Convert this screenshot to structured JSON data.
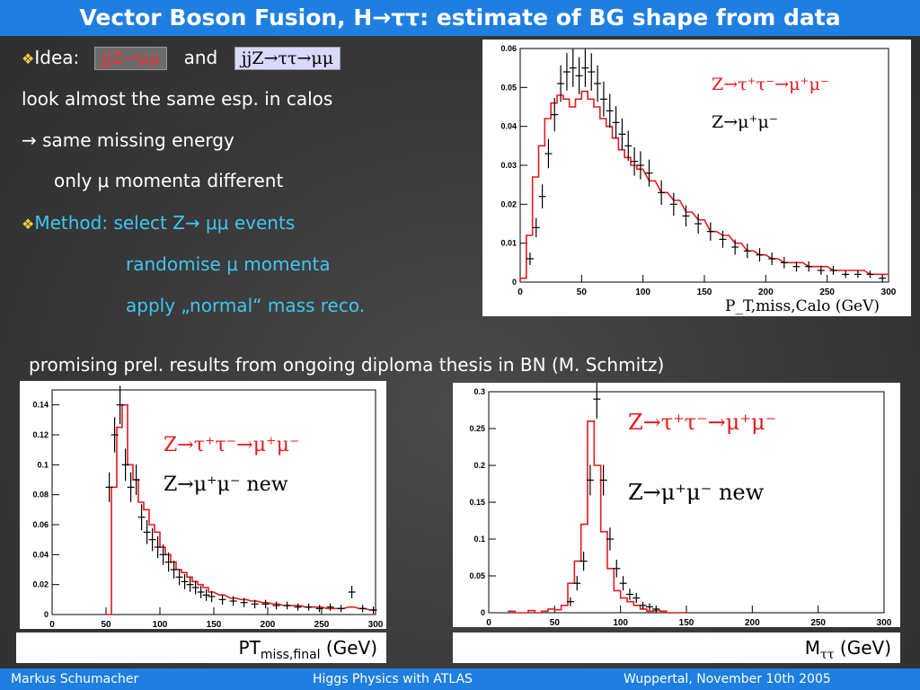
{
  "header": {
    "title": "Vector Boson Fusion, H→ττ: estimate of BG shape from data"
  },
  "bullets": {
    "idea_label": "Idea:",
    "tag1": "jjZ→μμ",
    "and": "and",
    "tag2": "jjZ→ττ→μμ",
    "line2": "look almost the same esp. in calos",
    "line3": "→ same missing energy",
    "line4": "only μ momenta different",
    "method": "Method: select Z→ μμ events",
    "method2": "randomise μ momenta",
    "method3": "apply „normal“ mass reco.",
    "promising": "promising prel. results from ongoing diploma thesis in BN (M. Schmitz)"
  },
  "captions": {
    "left": "PTmiss,final (GeV)",
    "left_main": "PT",
    "left_sub": "miss,final",
    "left_unit": " (GeV)",
    "right_main": "M",
    "right_sub": "ττ",
    "right_unit": " (GeV)"
  },
  "footer": {
    "author": "Markus  Schumacher",
    "talk": "Higgs Physics  with ATLAS",
    "place_date": "Wuppertal, November 10th 2005"
  },
  "colors": {
    "accent": "#1f7fe0",
    "cyan": "#3ec7f0",
    "red": "#e8191d"
  },
  "chart_data": [
    {
      "type": "line",
      "xlabel": "P_T,miss,Calo (GeV)",
      "xlim": [
        0,
        300
      ],
      "ylim": [
        0,
        0.06
      ],
      "xticks": [
        "0",
        "50",
        "100",
        "150",
        "200",
        "250",
        "300"
      ],
      "yticks": [
        "0",
        "0.01",
        "0.02",
        "0.03",
        "0.04",
        "0.05",
        "0.06"
      ],
      "legend": [
        "Z→τ⁺τ⁻→μ⁺μ⁻",
        "Z→μ⁺μ⁻"
      ],
      "series": [
        {
          "name": "Z→τ⁺τ⁻→μ⁺μ⁻",
          "style": "histogram",
          "x": [
            5,
            10,
            15,
            20,
            25,
            30,
            35,
            40,
            45,
            50,
            55,
            60,
            65,
            70,
            75,
            80,
            85,
            90,
            95,
            100,
            110,
            120,
            130,
            140,
            150,
            160,
            170,
            180,
            190,
            200,
            210,
            220,
            230,
            240,
            250,
            260,
            270,
            280,
            290,
            300
          ],
          "values": [
            0.001,
            0.012,
            0.027,
            0.035,
            0.042,
            0.046,
            0.048,
            0.047,
            0.045,
            0.047,
            0.049,
            0.047,
            0.045,
            0.042,
            0.04,
            0.037,
            0.034,
            0.032,
            0.03,
            0.029,
            0.026,
            0.023,
            0.021,
            0.018,
            0.016,
            0.013,
            0.012,
            0.01,
            0.008,
            0.007,
            0.006,
            0.005,
            0.005,
            0.004,
            0.004,
            0.003,
            0.003,
            0.003,
            0.002,
            0.002
          ]
        },
        {
          "name": "Z→μ⁺μ⁻",
          "style": "points",
          "x": [
            8,
            13,
            18,
            23,
            28,
            33,
            38,
            43,
            48,
            53,
            58,
            63,
            68,
            73,
            78,
            83,
            88,
            93,
            98,
            105,
            115,
            125,
            135,
            145,
            155,
            165,
            175,
            185,
            195,
            205,
            215,
            225,
            235,
            245,
            255,
            265,
            275,
            285,
            295
          ],
          "values": [
            0.006,
            0.014,
            0.022,
            0.033,
            0.043,
            0.051,
            0.054,
            0.055,
            0.053,
            0.055,
            0.054,
            0.051,
            0.047,
            0.044,
            0.041,
            0.038,
            0.035,
            0.031,
            0.03,
            0.028,
            0.023,
            0.02,
            0.017,
            0.015,
            0.013,
            0.011,
            0.009,
            0.008,
            0.007,
            0.006,
            0.005,
            0.004,
            0.004,
            0.003,
            0.003,
            0.002,
            0.002,
            0.002,
            0.001
          ]
        }
      ]
    },
    {
      "type": "line",
      "xlim": [
        0,
        300
      ],
      "ylim": [
        0,
        0.15
      ],
      "xticks": [
        "0",
        "50",
        "100",
        "150",
        "200",
        "250",
        "300"
      ],
      "yticks": [
        "0",
        "0.02",
        "0.04",
        "0.06",
        "0.08",
        "0.1",
        "0.12",
        "0.14"
      ],
      "legend": [
        "Z→τ⁺τ⁻→μ⁺μ⁻",
        "Z→μ⁺μ⁻ new"
      ],
      "series": [
        {
          "name": "Z→τ⁺τ⁻→μ⁺μ⁻",
          "style": "histogram",
          "x": [
            55,
            60,
            65,
            70,
            75,
            80,
            85,
            90,
            95,
            100,
            105,
            110,
            115,
            120,
            125,
            130,
            135,
            140,
            145,
            150,
            160,
            170,
            180,
            190,
            200,
            210,
            220,
            230,
            240,
            250,
            260,
            270,
            280,
            290,
            300
          ],
          "values": [
            0.0,
            0.085,
            0.125,
            0.14,
            0.1,
            0.09,
            0.075,
            0.07,
            0.06,
            0.055,
            0.045,
            0.04,
            0.035,
            0.03,
            0.028,
            0.025,
            0.022,
            0.02,
            0.018,
            0.015,
            0.013,
            0.011,
            0.01,
            0.009,
            0.008,
            0.007,
            0.006,
            0.006,
            0.005,
            0.005,
            0.004,
            0.004,
            0.005,
            0.004,
            0.003
          ]
        },
        {
          "name": "Z→μ⁺μ⁻ new",
          "style": "points",
          "x": [
            53,
            58,
            63,
            68,
            73,
            78,
            83,
            88,
            93,
            98,
            103,
            108,
            113,
            118,
            123,
            128,
            133,
            138,
            143,
            148,
            158,
            168,
            178,
            188,
            198,
            208,
            218,
            228,
            238,
            248,
            258,
            268,
            278,
            288,
            298
          ],
          "values": [
            0.085,
            0.12,
            0.14,
            0.1,
            0.085,
            0.09,
            0.065,
            0.055,
            0.05,
            0.045,
            0.04,
            0.035,
            0.03,
            0.025,
            0.022,
            0.02,
            0.018,
            0.015,
            0.013,
            0.012,
            0.01,
            0.009,
            0.008,
            0.007,
            0.007,
            0.006,
            0.006,
            0.005,
            0.005,
            0.004,
            0.005,
            0.004,
            0.015,
            0.004,
            0.003
          ]
        }
      ]
    },
    {
      "type": "line",
      "xlim": [
        0,
        300
      ],
      "ylim": [
        0,
        0.3
      ],
      "xticks": [
        "0",
        "50",
        "100",
        "150",
        "200",
        "250",
        "300"
      ],
      "yticks": [
        "0",
        "0.05",
        "0.1",
        "0.15",
        "0.2",
        "0.25",
        "0.3"
      ],
      "legend": [
        "Z→τ⁺τ⁻→μ⁺μ⁻",
        "Z→μ⁺μ⁻ new"
      ],
      "series": [
        {
          "name": "Z→τ⁺τ⁻→μ⁺μ⁻",
          "style": "histogram",
          "x": [
            20,
            25,
            30,
            35,
            40,
            45,
            50,
            55,
            60,
            65,
            70,
            75,
            80,
            85,
            90,
            95,
            100,
            105,
            110,
            115,
            120,
            125,
            130,
            135,
            140,
            145,
            150
          ],
          "values": [
            0.002,
            0.0,
            0.0,
            0.003,
            0.0,
            0.002,
            0.005,
            0.004,
            0.01,
            0.04,
            0.07,
            0.12,
            0.26,
            0.2,
            0.11,
            0.06,
            0.03,
            0.02,
            0.015,
            0.01,
            0.005,
            0.002,
            0.003,
            0.002,
            0.0,
            0.0,
            0.0
          ]
        },
        {
          "name": "Z→μ⁺μ⁻ new",
          "style": "points",
          "x": [
            62,
            67,
            72,
            77,
            82,
            87,
            92,
            97,
            102,
            107,
            112,
            117,
            122,
            127
          ],
          "values": [
            0.015,
            0.04,
            0.07,
            0.18,
            0.29,
            0.18,
            0.1,
            0.06,
            0.04,
            0.025,
            0.02,
            0.01,
            0.008,
            0.005
          ]
        }
      ]
    }
  ]
}
